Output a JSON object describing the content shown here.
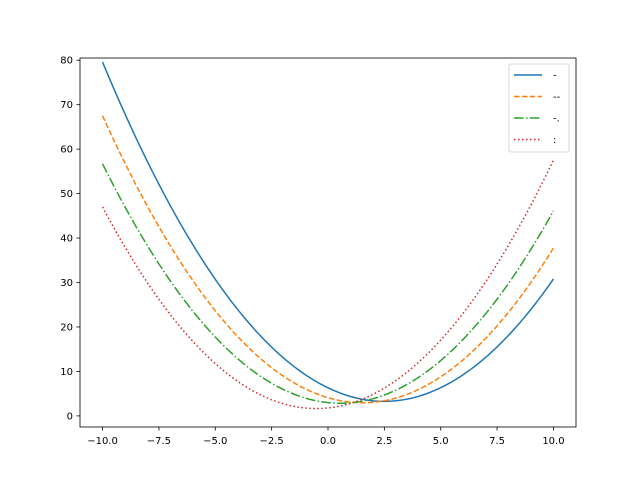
{
  "chart_data": {
    "type": "line",
    "title": "",
    "xlabel": "",
    "ylabel": "",
    "xlim": [
      -11,
      11
    ],
    "ylim": [
      -2.5,
      80.5
    ],
    "grid": false,
    "legend_position": "top-right",
    "x_ticks": [
      -10.0,
      -7.5,
      -5.0,
      -2.5,
      0.0,
      2.5,
      5.0,
      7.5,
      10.0
    ],
    "x_tick_labels": [
      "−10.0",
      "−7.5",
      "−5.0",
      "−2.5",
      "0.0",
      "2.5",
      "5.0",
      "7.5",
      "10.0"
    ],
    "y_ticks": [
      0,
      10,
      20,
      30,
      40,
      50,
      60,
      70,
      80
    ],
    "y_tick_labels": [
      "0",
      "10",
      "20",
      "30",
      "40",
      "50",
      "60",
      "70",
      "80"
    ],
    "series": [
      {
        "name": "-",
        "linestyle": "solid",
        "color": "#1f77b4",
        "x": [
          -10,
          -7.5,
          -5,
          -2.5,
          0,
          2,
          2.5,
          5,
          7.5,
          10
        ],
        "y": [
          76.6,
          54.2,
          34.2,
          16.9,
          4.1,
          1.0,
          1.1,
          7.4,
          17.5,
          30.5
        ]
      },
      {
        "name": "--",
        "linestyle": "dashed",
        "color": "#ff7f0e",
        "x": [
          -10,
          -7.5,
          -5,
          -2.5,
          0,
          1.5,
          2.5,
          5,
          7.5,
          10
        ],
        "y": [
          64.5,
          44.3,
          27.0,
          12.6,
          3.1,
          1.0,
          1.4,
          8.1,
          21.1,
          38.7
        ]
      },
      {
        "name": "-.",
        "linestyle": "dashdot",
        "color": "#2ca02c",
        "x": [
          -10,
          -7.5,
          -5,
          -2.5,
          0,
          1,
          2.5,
          5,
          7.5,
          10
        ],
        "y": [
          53.9,
          35.5,
          21.0,
          9.6,
          2.3,
          1.0,
          2.4,
          11.6,
          26.8,
          47.3
        ]
      },
      {
        "name": ":",
        "linestyle": "dotted",
        "color": "#d62728",
        "x": [
          -10,
          -7.5,
          -5,
          -2.5,
          0,
          0.5,
          2.5,
          5,
          7.5,
          10
        ],
        "y": [
          44.0,
          27.6,
          15.2,
          5.9,
          1.1,
          0.9,
          4.0,
          15.5,
          34.0,
          59.4
        ]
      }
    ]
  }
}
